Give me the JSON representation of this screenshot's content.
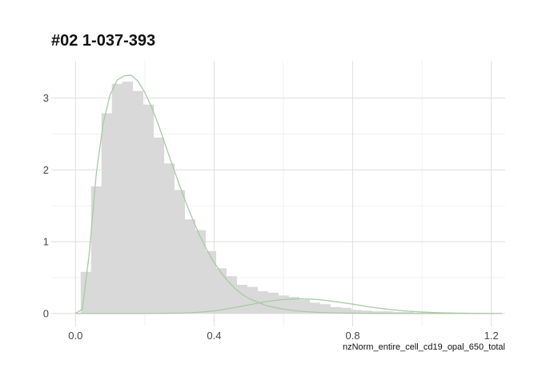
{
  "chart_data": {
    "type": "bar",
    "title": "#02 1-037-393",
    "xlabel": "nzNorm_entire_cell_cd19_opal_650_total",
    "ylabel": "",
    "xlim": [
      -0.07,
      1.24
    ],
    "ylim": [
      -0.18,
      3.52
    ],
    "x_ticks": [
      0.0,
      0.4,
      0.8,
      1.2
    ],
    "x_tick_labels": [
      "0.0",
      "0.4",
      "0.8",
      "1.2"
    ],
    "y_ticks": [
      0,
      1,
      2,
      3
    ],
    "y_tick_labels": [
      "0",
      "1",
      "2",
      "3"
    ],
    "x_minor_grid": [
      0.2,
      0.6,
      1.0
    ],
    "y_minor_grid": [
      0.5,
      1.5,
      2.5
    ],
    "grid": true,
    "bin_width": 0.03,
    "bins_start": 0.015,
    "values": [
      0.58,
      1.77,
      2.79,
      3.2,
      3.23,
      3.1,
      2.91,
      2.45,
      2.09,
      1.72,
      1.31,
      1.16,
      0.87,
      0.63,
      0.52,
      0.4,
      0.37,
      0.31,
      0.29,
      0.25,
      0.23,
      0.19,
      0.15,
      0.13,
      0.09,
      0.08,
      0.05,
      0.04,
      0.03,
      0.03,
      0.02,
      0.02,
      0.01,
      0.01,
      0.01,
      0.01,
      0.0,
      0.0,
      0.0,
      0.0
    ],
    "density_curves": [
      {
        "x": [
          0.0,
          0.02,
          0.04,
          0.06,
          0.08,
          0.1,
          0.12,
          0.14,
          0.16,
          0.18,
          0.2,
          0.22,
          0.24,
          0.26,
          0.28,
          0.3,
          0.32,
          0.34,
          0.36,
          0.38,
          0.4,
          0.42,
          0.44,
          0.46,
          0.48,
          0.5,
          0.55,
          0.6,
          0.65,
          0.7,
          0.75,
          0.8,
          0.85,
          0.9,
          0.95,
          1.0,
          1.05,
          1.1,
          1.15,
          1.2,
          1.23
        ],
        "y": [
          0.0,
          0.06,
          0.85,
          1.95,
          2.65,
          3.05,
          3.25,
          3.31,
          3.32,
          3.24,
          3.08,
          2.87,
          2.62,
          2.34,
          2.06,
          1.79,
          1.53,
          1.29,
          1.07,
          0.88,
          0.71,
          0.57,
          0.45,
          0.35,
          0.27,
          0.21,
          0.11,
          0.06,
          0.03,
          0.015,
          0.008,
          0.004,
          0.002,
          0.001,
          0.0,
          0.0,
          0.0,
          0.0,
          0.0,
          0.0,
          0.0
        ]
      },
      {
        "x": [
          0.0,
          0.1,
          0.2,
          0.3,
          0.35,
          0.4,
          0.45,
          0.5,
          0.55,
          0.6,
          0.65,
          0.7,
          0.75,
          0.8,
          0.85,
          0.9,
          0.95,
          1.0,
          1.05,
          1.1,
          1.15,
          1.2,
          1.23
        ],
        "y": [
          0.0,
          0.0,
          0.0,
          0.005,
          0.015,
          0.035,
          0.075,
          0.12,
          0.165,
          0.195,
          0.205,
          0.195,
          0.165,
          0.13,
          0.09,
          0.06,
          0.035,
          0.02,
          0.01,
          0.005,
          0.002,
          0.0,
          0.0
        ]
      }
    ],
    "colors": {
      "bars": "#d9d9d9",
      "curve": "#a8caa4",
      "grid_major": "#dedede",
      "grid_minor": "#eeeeee"
    }
  }
}
